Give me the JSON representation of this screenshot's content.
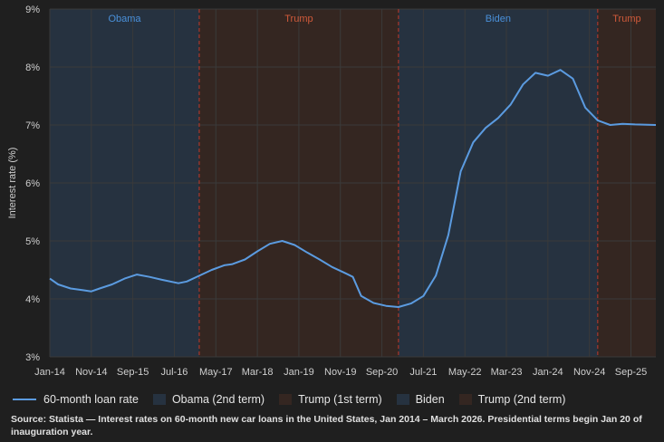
{
  "chart_data": {
    "type": "line",
    "ylabel": "Interest rate (%)",
    "xlabel": "",
    "ylim": [
      3,
      9
    ],
    "xlim": [
      "2014-01",
      "2026-03"
    ],
    "grid": true,
    "y_ticks": [
      "3%",
      "4%",
      "5%",
      "6%",
      "7%",
      "8%",
      "9%"
    ],
    "x_ticks": [
      "Jan-14",
      "Nov-14",
      "Sep-15",
      "Jul-16",
      "May-17",
      "Mar-18",
      "Jan-19",
      "Nov-19",
      "Sep-20",
      "Jul-21",
      "May-22",
      "Mar-23",
      "Jan-24",
      "Nov-24",
      "Sep-25"
    ],
    "periods": [
      {
        "label": "Obama",
        "start": "2014-01",
        "end": "2017-01",
        "color": "#263240",
        "label_color": "#4a90d9"
      },
      {
        "label": "Trump",
        "start": "2017-01",
        "end": "2021-01",
        "color": "#342621",
        "label_color": "#d05a3a"
      },
      {
        "label": "Biden",
        "start": "2021-01",
        "end": "2025-01",
        "color": "#263240",
        "label_color": "#4a90d9"
      },
      {
        "label": "Trump",
        "start": "2025-01",
        "end": "2026-03",
        "color": "#342621",
        "label_color": "#d05a3a"
      }
    ],
    "series": [
      {
        "name": "60-month loan rate",
        "color": "#5b9be0",
        "points": [
          [
            "2014-01",
            4.35
          ],
          [
            "2014-03",
            4.25
          ],
          [
            "2014-06",
            4.18
          ],
          [
            "2014-09",
            4.15
          ],
          [
            "2014-11",
            4.13
          ],
          [
            "2015-01",
            4.18
          ],
          [
            "2015-04",
            4.25
          ],
          [
            "2015-07",
            4.35
          ],
          [
            "2015-10",
            4.42
          ],
          [
            "2016-01",
            4.38
          ],
          [
            "2016-04",
            4.33
          ],
          [
            "2016-08",
            4.27
          ],
          [
            "2016-10",
            4.3
          ],
          [
            "2017-01",
            4.4
          ],
          [
            "2017-04",
            4.5
          ],
          [
            "2017-07",
            4.58
          ],
          [
            "2017-09",
            4.6
          ],
          [
            "2017-12",
            4.68
          ],
          [
            "2018-03",
            4.82
          ],
          [
            "2018-06",
            4.95
          ],
          [
            "2018-09",
            5.0
          ],
          [
            "2018-12",
            4.93
          ],
          [
            "2019-03",
            4.8
          ],
          [
            "2019-06",
            4.68
          ],
          [
            "2019-09",
            4.55
          ],
          [
            "2019-12",
            4.45
          ],
          [
            "2020-02",
            4.38
          ],
          [
            "2020-04",
            4.05
          ],
          [
            "2020-07",
            3.93
          ],
          [
            "2020-10",
            3.88
          ],
          [
            "2021-01",
            3.86
          ],
          [
            "2021-04",
            3.92
          ],
          [
            "2021-07",
            4.05
          ],
          [
            "2021-10",
            4.4
          ],
          [
            "2022-01",
            5.1
          ],
          [
            "2022-04",
            6.2
          ],
          [
            "2022-07",
            6.7
          ],
          [
            "2022-10",
            6.95
          ],
          [
            "2023-01",
            7.12
          ],
          [
            "2023-04",
            7.35
          ],
          [
            "2023-07",
            7.7
          ],
          [
            "2023-10",
            7.9
          ],
          [
            "2024-01",
            7.85
          ],
          [
            "2024-04",
            7.95
          ],
          [
            "2024-07",
            7.8
          ],
          [
            "2024-10",
            7.3
          ],
          [
            "2025-01",
            7.08
          ],
          [
            "2025-04",
            7.0
          ],
          [
            "2025-07",
            7.02
          ],
          [
            "2025-10",
            7.01
          ],
          [
            "2026-03",
            7.0
          ]
        ]
      }
    ]
  },
  "legend": {
    "line": "60-month loan rate",
    "obama": "Obama (2nd term)",
    "trump1": "Trump (1st term)",
    "biden": "Biden",
    "trump2": "Trump (2nd term)"
  },
  "colors": {
    "line": "#5b9be0",
    "blue_shade": "#263240",
    "red_shade": "#342621",
    "divider": "#c0392b",
    "grid": "#3a3a3a"
  },
  "source": "Source: Statista — Interest rates on 60-month new car loans in the United States, Jan 2014 – March 2026. Presidential terms begin Jan 20 of inauguration year."
}
